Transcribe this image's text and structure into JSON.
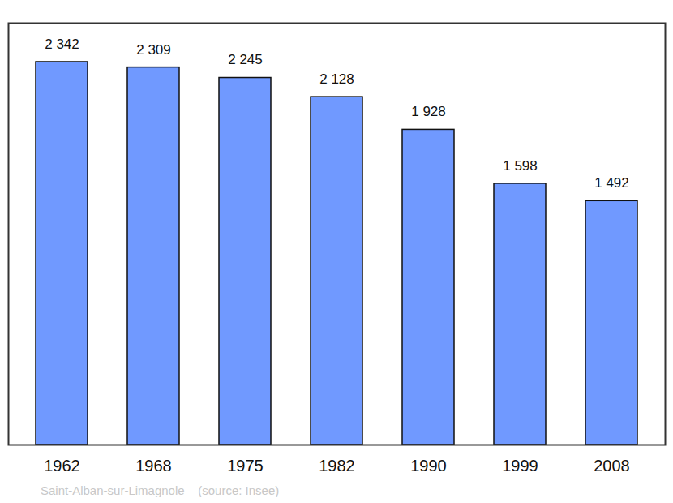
{
  "chart_data": {
    "type": "bar",
    "caption": "Saint-Alban-sur-Limagnole    (source: Insee)",
    "categories": [
      "1962",
      "1968",
      "1975",
      "1982",
      "1990",
      "1999",
      "2008"
    ],
    "values": [
      2342,
      2309,
      2245,
      2128,
      1928,
      1598,
      1492
    ],
    "value_labels": [
      "2 342",
      "2 309",
      "2 245",
      "2 128",
      "1 928",
      "1 598",
      "1 492"
    ],
    "color": "#7099ff",
    "ylim": [
      0,
      2580
    ],
    "grid": false,
    "data_labels": true,
    "tick_labels": "x"
  }
}
